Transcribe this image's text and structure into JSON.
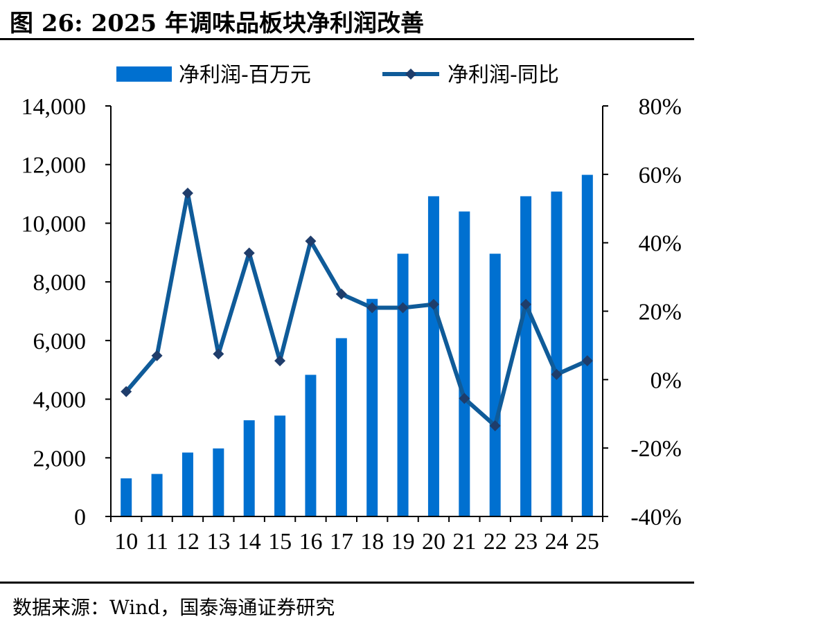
{
  "title": "图 26:  2025 年调味品板块净利润改善",
  "source": "数据来源：Wind，国泰海通证券研究",
  "colors": {
    "bar": "#0070d0",
    "line": "#0f5b99",
    "marker": "#1f3d6b"
  },
  "chart_data": {
    "type": "bar+line",
    "categories": [
      "10",
      "11",
      "12",
      "13",
      "14",
      "15",
      "16",
      "17",
      "18",
      "19",
      "20",
      "21",
      "22",
      "23",
      "24",
      "25"
    ],
    "series": [
      {
        "name": "净利润-百万元",
        "type": "bar",
        "axis": "left",
        "values": [
          1300,
          1450,
          2180,
          2320,
          3280,
          3440,
          4830,
          6080,
          7420,
          8960,
          10920,
          10400,
          8960,
          10920,
          11080,
          11650
        ]
      },
      {
        "name": "净利润-同比",
        "type": "line",
        "axis": "right",
        "unit": "%",
        "values": [
          -3.5,
          7,
          54.5,
          7.5,
          37,
          5.5,
          40.5,
          25,
          21,
          21,
          22,
          -5.5,
          -13.5,
          22,
          1.5,
          5.5
        ]
      }
    ],
    "y_left": {
      "min": 0,
      "max": 14000,
      "ticks": [
        "0",
        "2,000",
        "4,000",
        "6,000",
        "8,000",
        "10,000",
        "12,000",
        "14,000"
      ]
    },
    "y_right": {
      "min": -40,
      "max": 80,
      "ticks": [
        "-40%",
        "-20%",
        "0%",
        "20%",
        "40%",
        "60%",
        "80%"
      ]
    },
    "legend_position": "top",
    "grid": false
  }
}
